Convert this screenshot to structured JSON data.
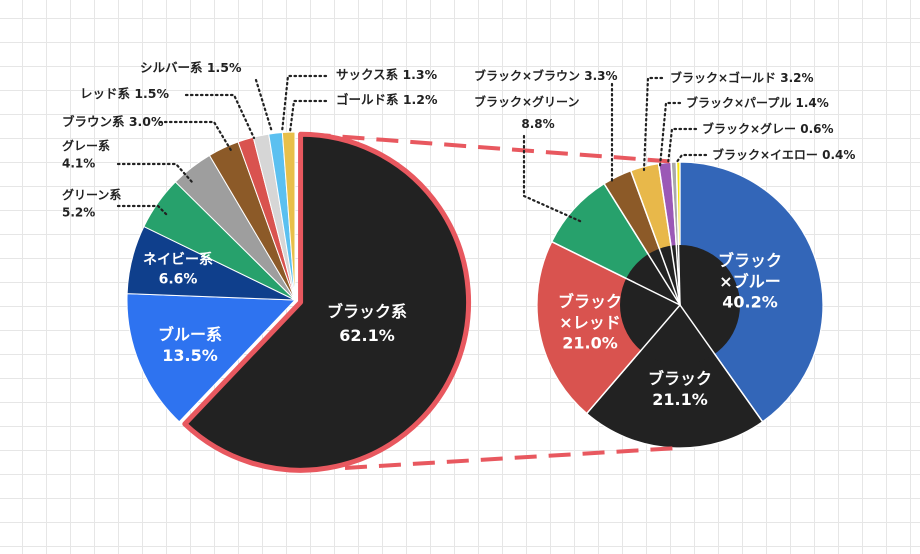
{
  "chart_data": [
    {
      "type": "pie",
      "slices": [
        {
          "label": "ブラック系",
          "value": 62.1,
          "display": "62.1%",
          "color": "#222222"
        },
        {
          "label": "ブルー系",
          "value": 13.5,
          "display": "13.5%",
          "color": "#2e73f0"
        },
        {
          "label": "ネイビー系",
          "value": 6.6,
          "display": "6.6%",
          "color": "#0f3f8c"
        },
        {
          "label": "グリーン系",
          "value": 5.2,
          "display": "5.2%",
          "color": "#27a16c"
        },
        {
          "label": "グレー系",
          "value": 4.1,
          "display": "4.1%",
          "color": "#9e9e9e"
        },
        {
          "label": "ブラウン系",
          "value": 3.0,
          "display": "3.0%",
          "color": "#8c5a28"
        },
        {
          "label": "レッド系",
          "value": 1.5,
          "display": "1.5%",
          "color": "#d9534f"
        },
        {
          "label": "シルバー系",
          "value": 1.5,
          "display": "1.5%",
          "color": "#d6d6d6"
        },
        {
          "label": "サックス系",
          "value": 1.3,
          "display": "1.3%",
          "color": "#5bc0f0"
        },
        {
          "label": "ゴールド系",
          "value": 1.2,
          "display": "1.2%",
          "color": "#e8c04a"
        }
      ]
    },
    {
      "type": "pie",
      "slices": [
        {
          "label": "ブラック×ブルー",
          "value": 40.2,
          "display": "40.2%",
          "color": "#3366b8"
        },
        {
          "label": "ブラック",
          "value": 21.1,
          "display": "21.1%",
          "color": "#222222"
        },
        {
          "label": "ブラック×レッド",
          "value": 21.0,
          "display": "21.0%",
          "color": "#d9534f"
        },
        {
          "label": "ブラック×グリーン",
          "value": 8.8,
          "display": "8.8%",
          "color": "#27a16c"
        },
        {
          "label": "ブラック×ブラウン",
          "value": 3.3,
          "display": "3.3%",
          "color": "#8c5a28"
        },
        {
          "label": "ブラック×ゴールド",
          "value": 3.2,
          "display": "3.2%",
          "color": "#e8b84a"
        },
        {
          "label": "ブラック×パープル",
          "value": 1.4,
          "display": "1.4%",
          "color": "#9b59b6"
        },
        {
          "label": "ブラック×グレー",
          "value": 0.6,
          "display": "0.6%",
          "color": "#aaaaaa"
        },
        {
          "label": "ブラック×イエロー",
          "value": 0.4,
          "display": "0.4%",
          "color": "#f5e214"
        }
      ]
    }
  ],
  "colors": {
    "highlight": "#e8585f",
    "inner_hole": "#222222",
    "label_dark": "#222222",
    "label_light": "#ffffff"
  }
}
